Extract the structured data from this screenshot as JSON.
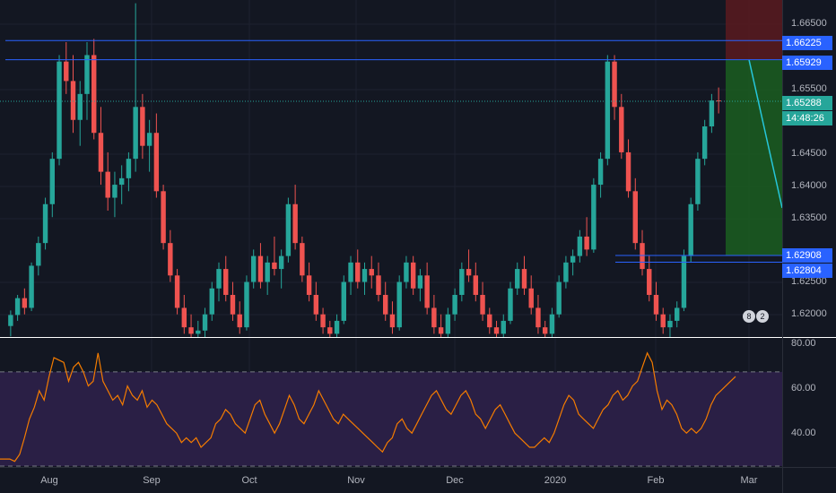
{
  "price_axis": {
    "ticks": [
      "1.66500",
      "1.65500",
      "1.64500",
      "1.64000",
      "1.63500",
      "1.62500",
      "1.62000"
    ],
    "labels": [
      {
        "text": "1.66225",
        "color": "#2962ff"
      },
      {
        "text": "1.65929",
        "color": "#2962ff"
      },
      {
        "text": "1.65288",
        "color": "#26a69a"
      },
      {
        "text": "14:48:26",
        "color": "#26a69a"
      },
      {
        "text": "1.62908",
        "color": "#2962ff"
      },
      {
        "text": "1.62804",
        "color": "#2962ff"
      }
    ]
  },
  "rsi_axis": {
    "ticks": [
      "80.00",
      "60.00",
      "40.00"
    ]
  },
  "time_axis": {
    "ticks": [
      "Aug",
      "Sep",
      "Oct",
      "Nov",
      "Dec",
      "2020",
      "Feb",
      "Mar"
    ]
  },
  "badges": [
    "8",
    "2"
  ],
  "colors": {
    "up": "#26a69a",
    "down": "#ef5350",
    "hline": "#2962ff",
    "rsi": "#f57c00",
    "rsi_bg": "#2a1f45",
    "target": "#1b5e20",
    "stop": "#5b1a1f"
  },
  "chart_data": {
    "type": "candlestick",
    "price_range": [
      1.6165,
      1.6685
    ],
    "horizontal_levels": [
      1.66225,
      1.65929,
      1.62908,
      1.62804
    ],
    "current_price": 1.65288,
    "position_box": {
      "entry": 1.65929,
      "target": 1.62908,
      "stop": 1.6685
    },
    "rsi": {
      "range": [
        30,
        84
      ],
      "bands": [
        70,
        30
      ],
      "values": [
        33,
        33,
        33,
        32,
        35,
        42,
        50,
        55,
        62,
        58,
        68,
        76,
        75,
        74,
        66,
        72,
        74,
        70,
        64,
        66,
        78,
        66,
        62,
        58,
        60,
        56,
        64,
        60,
        58,
        62,
        55,
        58,
        56,
        52,
        48,
        46,
        44,
        40,
        42,
        40,
        42,
        38,
        40,
        42,
        48,
        50,
        54,
        52,
        48,
        46,
        44,
        50,
        56,
        58,
        52,
        48,
        44,
        48,
        54,
        60,
        56,
        50,
        48,
        52,
        56,
        62,
        58,
        54,
        50,
        48,
        52,
        50,
        48,
        46,
        44,
        42,
        40,
        38,
        36,
        40,
        42,
        48,
        50,
        46,
        44,
        48,
        52,
        56,
        60,
        62,
        58,
        54,
        52,
        56,
        60,
        62,
        58,
        52,
        50,
        46,
        50,
        54,
        56,
        52,
        48,
        44,
        42,
        40,
        38,
        38,
        40,
        42,
        40,
        44,
        50,
        56,
        60,
        58,
        52,
        50,
        48,
        46,
        50,
        54,
        56,
        60,
        62,
        58,
        60,
        64,
        66,
        72,
        78,
        74,
        62,
        54,
        58,
        56,
        52,
        46,
        44,
        46,
        44,
        46,
        50,
        56,
        60,
        62,
        64,
        66,
        68
      ]
    },
    "candles": [
      [
        1.6182,
        1.6206,
        1.6166,
        1.6199
      ],
      [
        1.6199,
        1.623,
        1.619,
        1.6225
      ],
      [
        1.6225,
        1.624,
        1.62,
        1.621
      ],
      [
        1.621,
        1.628,
        1.6205,
        1.6275
      ],
      [
        1.6275,
        1.632,
        1.626,
        1.631
      ],
      [
        1.631,
        1.638,
        1.63,
        1.637
      ],
      [
        1.637,
        1.645,
        1.635,
        1.644
      ],
      [
        1.644,
        1.66,
        1.643,
        1.659
      ],
      [
        1.659,
        1.662,
        1.654,
        1.656
      ],
      [
        1.656,
        1.66,
        1.648,
        1.65
      ],
      [
        1.65,
        1.656,
        1.646,
        1.654
      ],
      [
        1.654,
        1.662,
        1.65,
        1.66
      ],
      [
        1.66,
        1.6625,
        1.647,
        1.648
      ],
      [
        1.648,
        1.652,
        1.64,
        1.642
      ],
      [
        1.642,
        1.645,
        1.636,
        1.638
      ],
      [
        1.638,
        1.642,
        1.635,
        1.64
      ],
      [
        1.64,
        1.643,
        1.637,
        1.641
      ],
      [
        1.641,
        1.645,
        1.639,
        1.644
      ],
      [
        1.644,
        1.668,
        1.642,
        1.652
      ],
      [
        1.652,
        1.654,
        1.644,
        1.646
      ],
      [
        1.646,
        1.65,
        1.642,
        1.648
      ],
      [
        1.648,
        1.651,
        1.638,
        1.639
      ],
      [
        1.639,
        1.64,
        1.63,
        1.631
      ],
      [
        1.631,
        1.633,
        1.625,
        1.626
      ],
      [
        1.626,
        1.627,
        1.62,
        1.621
      ],
      [
        1.621,
        1.623,
        1.617,
        1.618
      ],
      [
        1.618,
        1.62,
        1.616,
        1.617
      ],
      [
        1.617,
        1.619,
        1.616,
        1.6175
      ],
      [
        1.6175,
        1.621,
        1.6165,
        1.62
      ],
      [
        1.62,
        1.625,
        1.619,
        1.624
      ],
      [
        1.624,
        1.628,
        1.622,
        1.627
      ],
      [
        1.627,
        1.629,
        1.622,
        1.623
      ],
      [
        1.623,
        1.625,
        1.619,
        1.62
      ],
      [
        1.62,
        1.622,
        1.617,
        1.618
      ],
      [
        1.618,
        1.626,
        1.6175,
        1.625
      ],
      [
        1.625,
        1.63,
        1.624,
        1.629
      ],
      [
        1.629,
        1.631,
        1.624,
        1.625
      ],
      [
        1.625,
        1.629,
        1.623,
        1.628
      ],
      [
        1.628,
        1.632,
        1.626,
        1.627
      ],
      [
        1.627,
        1.63,
        1.624,
        1.629
      ],
      [
        1.629,
        1.638,
        1.628,
        1.637
      ],
      [
        1.637,
        1.64,
        1.63,
        1.631
      ],
      [
        1.631,
        1.632,
        1.625,
        1.626
      ],
      [
        1.626,
        1.628,
        1.622,
        1.623
      ],
      [
        1.623,
        1.625,
        1.619,
        1.62
      ],
      [
        1.62,
        1.621,
        1.617,
        1.618
      ],
      [
        1.618,
        1.619,
        1.616,
        1.617
      ],
      [
        1.617,
        1.62,
        1.6165,
        1.619
      ],
      [
        1.619,
        1.626,
        1.6185,
        1.625
      ],
      [
        1.625,
        1.629,
        1.623,
        1.628
      ],
      [
        1.628,
        1.63,
        1.624,
        1.625
      ],
      [
        1.625,
        1.628,
        1.623,
        1.627
      ],
      [
        1.627,
        1.629,
        1.624,
        1.626
      ],
      [
        1.626,
        1.628,
        1.622,
        1.623
      ],
      [
        1.623,
        1.625,
        1.619,
        1.62
      ],
      [
        1.62,
        1.622,
        1.617,
        1.618
      ],
      [
        1.618,
        1.626,
        1.6175,
        1.625
      ],
      [
        1.625,
        1.629,
        1.624,
        1.628
      ],
      [
        1.628,
        1.629,
        1.623,
        1.624
      ],
      [
        1.624,
        1.627,
        1.622,
        1.626
      ],
      [
        1.626,
        1.628,
        1.62,
        1.621
      ],
      [
        1.621,
        1.623,
        1.617,
        1.618
      ],
      [
        1.618,
        1.62,
        1.616,
        1.617
      ],
      [
        1.617,
        1.621,
        1.6165,
        1.62
      ],
      [
        1.62,
        1.624,
        1.619,
        1.623
      ],
      [
        1.623,
        1.628,
        1.622,
        1.627
      ],
      [
        1.627,
        1.63,
        1.625,
        1.626
      ],
      [
        1.626,
        1.628,
        1.622,
        1.623
      ],
      [
        1.623,
        1.625,
        1.619,
        1.62
      ],
      [
        1.62,
        1.621,
        1.617,
        1.618
      ],
      [
        1.618,
        1.619,
        1.616,
        1.617
      ],
      [
        1.617,
        1.62,
        1.6165,
        1.619
      ],
      [
        1.619,
        1.625,
        1.6185,
        1.624
      ],
      [
        1.624,
        1.628,
        1.623,
        1.627
      ],
      [
        1.627,
        1.629,
        1.623,
        1.624
      ],
      [
        1.624,
        1.626,
        1.62,
        1.621
      ],
      [
        1.621,
        1.623,
        1.617,
        1.618
      ],
      [
        1.618,
        1.619,
        1.616,
        1.617
      ],
      [
        1.617,
        1.621,
        1.6165,
        1.62
      ],
      [
        1.62,
        1.626,
        1.6195,
        1.625
      ],
      [
        1.625,
        1.629,
        1.624,
        1.628
      ],
      [
        1.628,
        1.63,
        1.626,
        1.629
      ],
      [
        1.629,
        1.633,
        1.628,
        1.632
      ],
      [
        1.632,
        1.635,
        1.629,
        1.63
      ],
      [
        1.63,
        1.641,
        1.6295,
        1.64
      ],
      [
        1.64,
        1.645,
        1.638,
        1.644
      ],
      [
        1.644,
        1.66,
        1.643,
        1.659
      ],
      [
        1.659,
        1.66,
        1.65,
        1.652
      ],
      [
        1.652,
        1.654,
        1.644,
        1.645
      ],
      [
        1.645,
        1.647,
        1.638,
        1.639
      ],
      [
        1.639,
        1.641,
        1.63,
        1.631
      ],
      [
        1.631,
        1.633,
        1.626,
        1.627
      ],
      [
        1.627,
        1.629,
        1.622,
        1.623
      ],
      [
        1.623,
        1.625,
        1.619,
        1.62
      ],
      [
        1.62,
        1.621,
        1.617,
        1.618
      ],
      [
        1.618,
        1.62,
        1.6165,
        1.619
      ],
      [
        1.619,
        1.622,
        1.618,
        1.621
      ],
      [
        1.621,
        1.63,
        1.6205,
        1.629
      ],
      [
        1.629,
        1.638,
        1.628,
        1.637
      ],
      [
        1.637,
        1.645,
        1.636,
        1.644
      ],
      [
        1.644,
        1.65,
        1.643,
        1.649
      ],
      [
        1.649,
        1.654,
        1.648,
        1.653
      ],
      [
        1.653,
        1.655,
        1.651,
        1.6529
      ]
    ]
  }
}
